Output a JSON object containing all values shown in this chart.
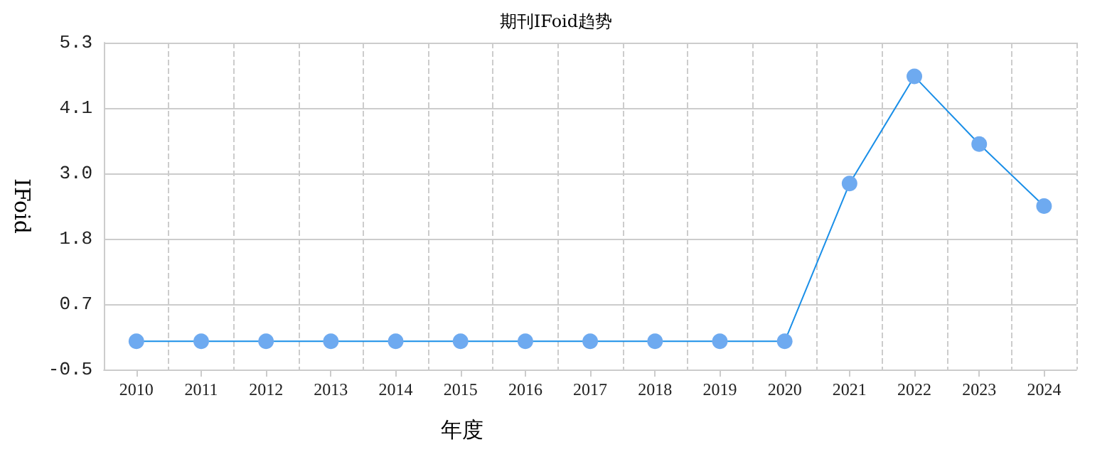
{
  "chart_data": {
    "type": "line",
    "title": "期刊IFoid趋势",
    "xlabel": "年度",
    "ylabel": "IFoid",
    "categories": [
      "2010",
      "2011",
      "2012",
      "2013",
      "2014",
      "2015",
      "2016",
      "2017",
      "2018",
      "2019",
      "2020",
      "2021",
      "2022",
      "2023",
      "2024"
    ],
    "series": [
      {
        "color": "#1a8fe8",
        "values": [
          0,
          0,
          0,
          0,
          0,
          0,
          0,
          0,
          0,
          0,
          0,
          2.8,
          4.7,
          3.5,
          2.4
        ]
      }
    ],
    "ylim": [
      -0.5,
      5.3
    ],
    "yticks": [
      -0.5,
      {
        "value": 0.66,
        "label": "0.7"
      },
      {
        "value": 1.82,
        "label": "1.8"
      },
      {
        "value": 2.98,
        "label": "3.0"
      },
      {
        "value": 4.14,
        "label": "4.1"
      },
      5.3
    ],
    "grid": true,
    "marker": "circle",
    "line_style": "solid"
  }
}
